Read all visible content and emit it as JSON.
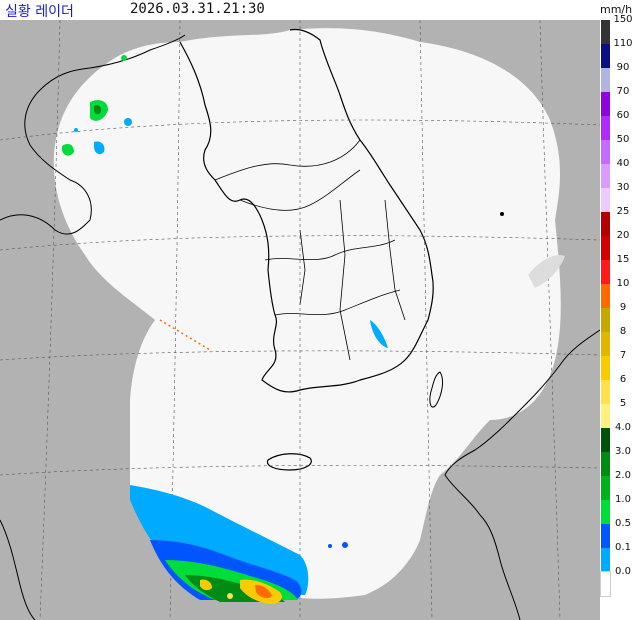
{
  "header": {
    "title": "실황 레이더",
    "timestamp": "2026.03.31.21:30",
    "unit": "mm/h"
  },
  "legend": {
    "items": [
      {
        "label": "150",
        "color": "#333333"
      },
      {
        "label": "110",
        "color": "#0c0f7f"
      },
      {
        "label": "90",
        "color": "#b2b5e0"
      },
      {
        "label": "70",
        "color": "#8d05da"
      },
      {
        "label": "60",
        "color": "#ae2cff"
      },
      {
        "label": "50",
        "color": "#c66bff"
      },
      {
        "label": "40",
        "color": "#db9cff"
      },
      {
        "label": "30",
        "color": "#edcbff"
      },
      {
        "label": "25",
        "color": "#b30000"
      },
      {
        "label": "20",
        "color": "#d20000"
      },
      {
        "label": "15",
        "color": "#ff1a1a"
      },
      {
        "label": "10",
        "color": "#ff6b00"
      },
      {
        "label": "9",
        "color": "#c7a800"
      },
      {
        "label": "8",
        "color": "#e0b700"
      },
      {
        "label": "7",
        "color": "#f9cb00"
      },
      {
        "label": "6",
        "color": "#ffe04d"
      },
      {
        "label": "5",
        "color": "#fff080"
      },
      {
        "label": "4.0",
        "color": "#00520a"
      },
      {
        "label": "3.0",
        "color": "#008c14"
      },
      {
        "label": "2.0",
        "color": "#00b31d"
      },
      {
        "label": "1.0",
        "color": "#00dc3a"
      },
      {
        "label": "0.5",
        "color": "#0055ff"
      },
      {
        "label": "0.1",
        "color": "#00aaff"
      },
      {
        "label": "0.0",
        "color": "#ffffff"
      }
    ]
  },
  "map": {
    "colors": {
      "background": "#b2b2b2",
      "coverage": "#f7f7f7",
      "grid": "#555555",
      "coast": "#000000"
    }
  }
}
